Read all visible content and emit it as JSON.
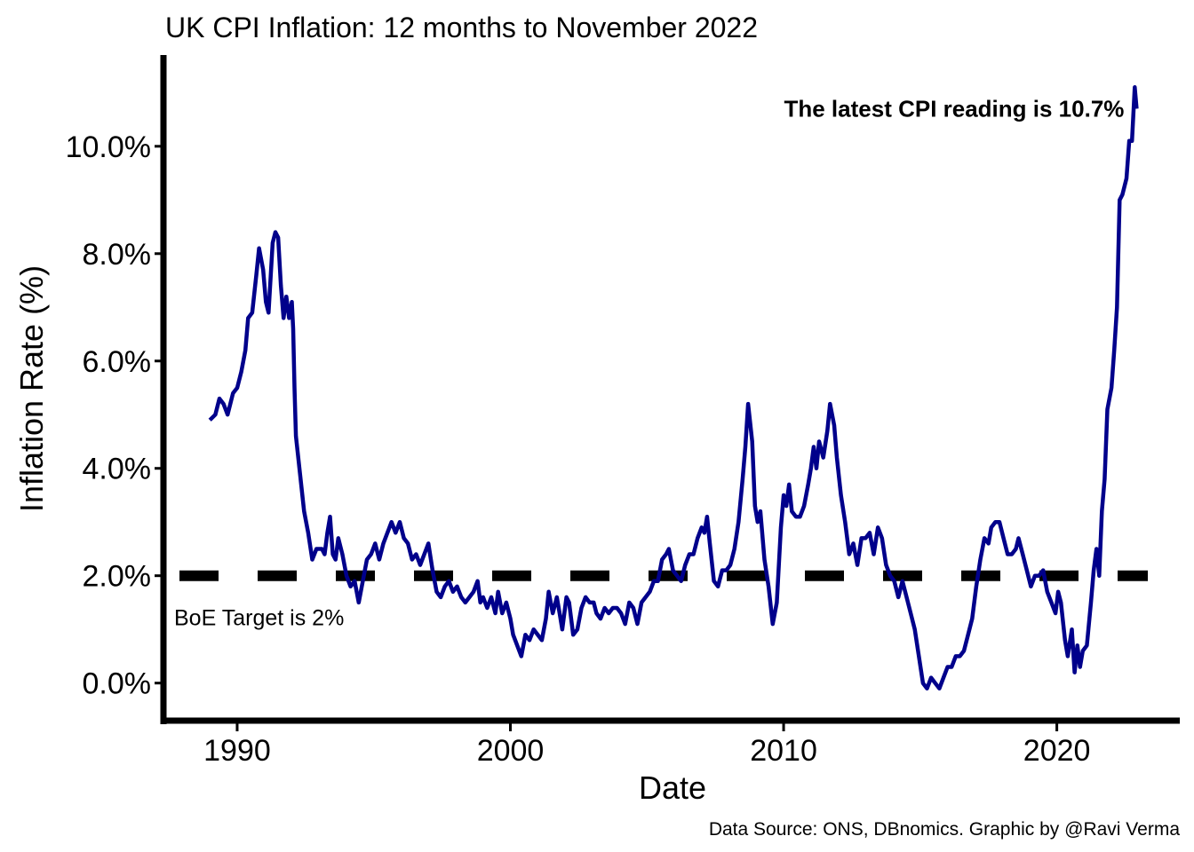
{
  "chart_data": {
    "type": "line",
    "title": "UK CPI Inflation: 12 months to November 2022",
    "xlabel": "Date",
    "ylabel": "Inflation Rate (%)",
    "xlim": [
      1987.4,
      2024.5
    ],
    "ylim": [
      -0.7,
      11.7
    ],
    "x_ticks": [
      1990,
      2000,
      2010,
      2020
    ],
    "x_tick_labels": [
      "1990",
      "2000",
      "2010",
      "2020"
    ],
    "y_ticks": [
      0,
      2,
      4,
      6,
      8,
      10
    ],
    "y_tick_labels": [
      "0.0%",
      "2.0%",
      "4.0%",
      "6.0%",
      "8.0%",
      "10.0%"
    ],
    "grid": false,
    "series": [
      {
        "color": "#00008b",
        "points": [
          [
            1989.0,
            4.9
          ],
          [
            1989.2,
            5.0
          ],
          [
            1989.35,
            5.3
          ],
          [
            1989.5,
            5.2
          ],
          [
            1989.65,
            5.0
          ],
          [
            1989.85,
            5.4
          ],
          [
            1990.0,
            5.5
          ],
          [
            1990.15,
            5.8
          ],
          [
            1990.3,
            6.2
          ],
          [
            1990.4,
            6.8
          ],
          [
            1990.55,
            6.9
          ],
          [
            1990.7,
            7.6
          ],
          [
            1990.8,
            8.1
          ],
          [
            1990.95,
            7.7
          ],
          [
            1991.05,
            7.1
          ],
          [
            1991.15,
            6.9
          ],
          [
            1991.3,
            8.2
          ],
          [
            1991.4,
            8.4
          ],
          [
            1991.5,
            8.3
          ],
          [
            1991.6,
            7.4
          ],
          [
            1991.7,
            6.8
          ],
          [
            1991.8,
            7.2
          ],
          [
            1991.9,
            6.8
          ],
          [
            1992.0,
            7.1
          ],
          [
            1992.05,
            6.6
          ],
          [
            1992.1,
            5.5
          ],
          [
            1992.15,
            4.6
          ],
          [
            1992.3,
            3.9
          ],
          [
            1992.45,
            3.2
          ],
          [
            1992.6,
            2.8
          ],
          [
            1992.75,
            2.3
          ],
          [
            1992.9,
            2.5
          ],
          [
            1993.1,
            2.5
          ],
          [
            1993.2,
            2.4
          ],
          [
            1993.3,
            2.8
          ],
          [
            1993.4,
            3.1
          ],
          [
            1993.5,
            2.4
          ],
          [
            1993.6,
            2.3
          ],
          [
            1993.7,
            2.7
          ],
          [
            1993.85,
            2.4
          ],
          [
            1994.0,
            2.0
          ],
          [
            1994.15,
            1.8
          ],
          [
            1994.3,
            1.9
          ],
          [
            1994.45,
            1.5
          ],
          [
            1994.6,
            1.9
          ],
          [
            1994.75,
            2.3
          ],
          [
            1994.9,
            2.4
          ],
          [
            1995.05,
            2.6
          ],
          [
            1995.2,
            2.3
          ],
          [
            1995.35,
            2.6
          ],
          [
            1995.5,
            2.8
          ],
          [
            1995.65,
            3.0
          ],
          [
            1995.8,
            2.8
          ],
          [
            1995.95,
            3.0
          ],
          [
            1996.1,
            2.7
          ],
          [
            1996.25,
            2.6
          ],
          [
            1996.4,
            2.3
          ],
          [
            1996.55,
            2.4
          ],
          [
            1996.7,
            2.2
          ],
          [
            1996.85,
            2.4
          ],
          [
            1997.0,
            2.6
          ],
          [
            1997.15,
            2.1
          ],
          [
            1997.3,
            1.7
          ],
          [
            1997.45,
            1.6
          ],
          [
            1997.6,
            1.8
          ],
          [
            1997.75,
            1.9
          ],
          [
            1997.9,
            1.7
          ],
          [
            1998.05,
            1.8
          ],
          [
            1998.2,
            1.6
          ],
          [
            1998.35,
            1.5
          ],
          [
            1998.5,
            1.6
          ],
          [
            1998.65,
            1.7
          ],
          [
            1998.8,
            1.9
          ],
          [
            1998.9,
            1.5
          ],
          [
            1999.0,
            1.6
          ],
          [
            1999.15,
            1.4
          ],
          [
            1999.3,
            1.6
          ],
          [
            1999.45,
            1.3
          ],
          [
            1999.55,
            1.7
          ],
          [
            1999.7,
            1.3
          ],
          [
            1999.85,
            1.5
          ],
          [
            2000.0,
            1.2
          ],
          [
            2000.1,
            0.9
          ],
          [
            2000.25,
            0.7
          ],
          [
            2000.4,
            0.5
          ],
          [
            2000.55,
            0.9
          ],
          [
            2000.7,
            0.8
          ],
          [
            2000.85,
            1.0
          ],
          [
            2001.0,
            0.9
          ],
          [
            2001.15,
            0.8
          ],
          [
            2001.3,
            1.2
          ],
          [
            2001.4,
            1.7
          ],
          [
            2001.55,
            1.3
          ],
          [
            2001.7,
            1.6
          ],
          [
            2001.8,
            1.3
          ],
          [
            2001.9,
            1.0
          ],
          [
            2002.05,
            1.6
          ],
          [
            2002.15,
            1.5
          ],
          [
            2002.3,
            0.9
          ],
          [
            2002.45,
            1.0
          ],
          [
            2002.6,
            1.4
          ],
          [
            2002.75,
            1.6
          ],
          [
            2002.9,
            1.5
          ],
          [
            2003.05,
            1.5
          ],
          [
            2003.15,
            1.3
          ],
          [
            2003.3,
            1.2
          ],
          [
            2003.45,
            1.4
          ],
          [
            2003.6,
            1.3
          ],
          [
            2003.75,
            1.4
          ],
          [
            2003.9,
            1.4
          ],
          [
            2004.05,
            1.3
          ],
          [
            2004.2,
            1.1
          ],
          [
            2004.35,
            1.5
          ],
          [
            2004.5,
            1.4
          ],
          [
            2004.65,
            1.1
          ],
          [
            2004.8,
            1.5
          ],
          [
            2004.95,
            1.6
          ],
          [
            2005.1,
            1.7
          ],
          [
            2005.25,
            1.9
          ],
          [
            2005.4,
            1.9
          ],
          [
            2005.55,
            2.3
          ],
          [
            2005.7,
            2.4
          ],
          [
            2005.8,
            2.5
          ],
          [
            2005.95,
            2.1
          ],
          [
            2006.1,
            2.0
          ],
          [
            2006.25,
            1.9
          ],
          [
            2006.4,
            2.2
          ],
          [
            2006.55,
            2.4
          ],
          [
            2006.7,
            2.4
          ],
          [
            2006.85,
            2.7
          ],
          [
            2007.0,
            2.9
          ],
          [
            2007.1,
            2.8
          ],
          [
            2007.2,
            3.1
          ],
          [
            2007.3,
            2.6
          ],
          [
            2007.45,
            1.9
          ],
          [
            2007.6,
            1.8
          ],
          [
            2007.75,
            2.1
          ],
          [
            2007.9,
            2.1
          ],
          [
            2008.05,
            2.2
          ],
          [
            2008.2,
            2.5
          ],
          [
            2008.35,
            3.0
          ],
          [
            2008.5,
            3.8
          ],
          [
            2008.6,
            4.4
          ],
          [
            2008.7,
            5.2
          ],
          [
            2008.85,
            4.5
          ],
          [
            2008.95,
            3.3
          ],
          [
            2009.05,
            3.0
          ],
          [
            2009.15,
            3.2
          ],
          [
            2009.3,
            2.3
          ],
          [
            2009.45,
            1.8
          ],
          [
            2009.6,
            1.1
          ],
          [
            2009.75,
            1.5
          ],
          [
            2009.9,
            2.9
          ],
          [
            2010.0,
            3.5
          ],
          [
            2010.1,
            3.3
          ],
          [
            2010.2,
            3.7
          ],
          [
            2010.3,
            3.2
          ],
          [
            2010.45,
            3.1
          ],
          [
            2010.6,
            3.1
          ],
          [
            2010.75,
            3.3
          ],
          [
            2010.9,
            3.7
          ],
          [
            2011.0,
            4.0
          ],
          [
            2011.1,
            4.4
          ],
          [
            2011.2,
            4.0
          ],
          [
            2011.3,
            4.5
          ],
          [
            2011.45,
            4.2
          ],
          [
            2011.6,
            4.7
          ],
          [
            2011.7,
            5.2
          ],
          [
            2011.85,
            4.8
          ],
          [
            2011.95,
            4.2
          ],
          [
            2012.1,
            3.5
          ],
          [
            2012.25,
            3.0
          ],
          [
            2012.4,
            2.4
          ],
          [
            2012.55,
            2.6
          ],
          [
            2012.7,
            2.2
          ],
          [
            2012.85,
            2.7
          ],
          [
            2013.0,
            2.7
          ],
          [
            2013.15,
            2.8
          ],
          [
            2013.3,
            2.4
          ],
          [
            2013.45,
            2.9
          ],
          [
            2013.6,
            2.7
          ],
          [
            2013.75,
            2.2
          ],
          [
            2013.9,
            2.0
          ],
          [
            2014.05,
            1.9
          ],
          [
            2014.2,
            1.6
          ],
          [
            2014.35,
            1.9
          ],
          [
            2014.5,
            1.6
          ],
          [
            2014.65,
            1.3
          ],
          [
            2014.8,
            1.0
          ],
          [
            2014.95,
            0.5
          ],
          [
            2015.1,
            0.0
          ],
          [
            2015.25,
            -0.1
          ],
          [
            2015.4,
            0.1
          ],
          [
            2015.55,
            0.0
          ],
          [
            2015.7,
            -0.1
          ],
          [
            2015.85,
            0.1
          ],
          [
            2016.0,
            0.3
          ],
          [
            2016.15,
            0.3
          ],
          [
            2016.3,
            0.5
          ],
          [
            2016.45,
            0.5
          ],
          [
            2016.6,
            0.6
          ],
          [
            2016.75,
            0.9
          ],
          [
            2016.9,
            1.2
          ],
          [
            2017.05,
            1.8
          ],
          [
            2017.2,
            2.3
          ],
          [
            2017.35,
            2.7
          ],
          [
            2017.5,
            2.6
          ],
          [
            2017.6,
            2.9
          ],
          [
            2017.75,
            3.0
          ],
          [
            2017.9,
            3.0
          ],
          [
            2018.05,
            2.7
          ],
          [
            2018.2,
            2.4
          ],
          [
            2018.35,
            2.4
          ],
          [
            2018.5,
            2.5
          ],
          [
            2018.6,
            2.7
          ],
          [
            2018.75,
            2.4
          ],
          [
            2018.9,
            2.1
          ],
          [
            2019.05,
            1.8
          ],
          [
            2019.2,
            2.0
          ],
          [
            2019.35,
            2.0
          ],
          [
            2019.5,
            2.1
          ],
          [
            2019.65,
            1.7
          ],
          [
            2019.8,
            1.5
          ],
          [
            2019.95,
            1.3
          ],
          [
            2020.05,
            1.7
          ],
          [
            2020.15,
            1.5
          ],
          [
            2020.3,
            0.8
          ],
          [
            2020.4,
            0.5
          ],
          [
            2020.55,
            1.0
          ],
          [
            2020.65,
            0.2
          ],
          [
            2020.75,
            0.7
          ],
          [
            2020.85,
            0.3
          ],
          [
            2020.95,
            0.6
          ],
          [
            2021.1,
            0.7
          ],
          [
            2021.25,
            1.5
          ],
          [
            2021.35,
            2.1
          ],
          [
            2021.45,
            2.5
          ],
          [
            2021.55,
            2.0
          ],
          [
            2021.65,
            3.2
          ],
          [
            2021.75,
            3.8
          ],
          [
            2021.85,
            5.1
          ],
          [
            2022.0,
            5.5
          ],
          [
            2022.1,
            6.2
          ],
          [
            2022.2,
            7.0
          ],
          [
            2022.3,
            9.0
          ],
          [
            2022.4,
            9.1
          ],
          [
            2022.55,
            9.4
          ],
          [
            2022.65,
            10.1
          ],
          [
            2022.75,
            10.1
          ],
          [
            2022.85,
            11.1
          ],
          [
            2022.92,
            10.7
          ]
        ]
      }
    ],
    "reference_line": {
      "y": 2.0,
      "label": "BoE Target is 2%",
      "color": "#000000"
    },
    "annotation": "The latest CPI reading is 10.7%",
    "caption": "Data Source: ONS, DBnomics. Graphic by @Ravi Verma"
  }
}
